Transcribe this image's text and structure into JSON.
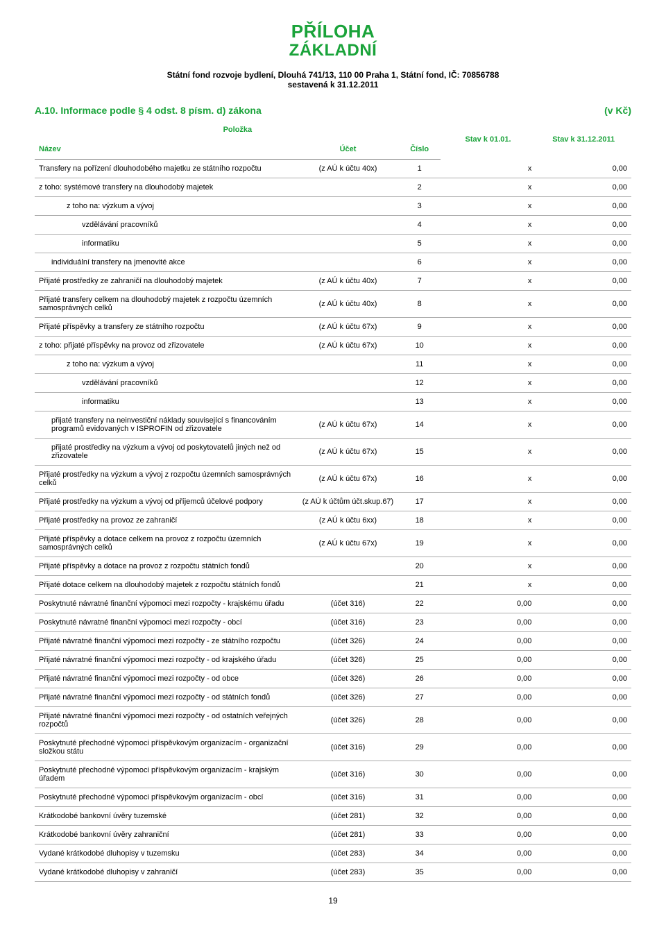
{
  "title": {
    "line1": "PŘÍLOHA",
    "line2": "ZÁKLADNÍ"
  },
  "subtitle": {
    "line1": "Státní fond rozvoje bydlení, Dlouhá 741/13, 110 00 Praha 1, Státní fond,  IČ: 70856788",
    "line2": "sestavená k 31.12.2011"
  },
  "section": {
    "left": "A.10. Informace podle § 4 odst. 8 písm. d) zákona",
    "right": "(v Kč)"
  },
  "header": {
    "polozka": "Položka",
    "nazev": "Název",
    "ucet": "Účet",
    "cislo": "Číslo",
    "col1": "Stav k 01.01.",
    "col2": "Stav k 31.12.2011"
  },
  "rows": [
    {
      "name": "Transfery na pořízení dlouhodobého majetku ze státního rozpočtu",
      "ucet": "(z AÚ k účtu 40x)",
      "cislo": "1",
      "v1": "x",
      "v2": "0,00",
      "indent": 0
    },
    {
      "name": "z toho: systémové transfery na dlouhodobý majetek",
      "ucet": "",
      "cislo": "2",
      "v1": "x",
      "v2": "0,00",
      "indent": 0
    },
    {
      "name": "z toho na: výzkum a vývoj",
      "ucet": "",
      "cislo": "3",
      "v1": "x",
      "v2": "0,00",
      "indent": 2
    },
    {
      "name": "vzdělávání pracovníků",
      "ucet": "",
      "cislo": "4",
      "v1": "x",
      "v2": "0,00",
      "indent": 3
    },
    {
      "name": "informatiku",
      "ucet": "",
      "cislo": "5",
      "v1": "x",
      "v2": "0,00",
      "indent": 3
    },
    {
      "name": "individuální transfery na jmenovité akce",
      "ucet": "",
      "cislo": "6",
      "v1": "x",
      "v2": "0,00",
      "indent": 1
    },
    {
      "name": "Přijaté prostředky ze zahraničí na dlouhodobý majetek",
      "ucet": "(z AÚ k účtu 40x)",
      "cislo": "7",
      "v1": "x",
      "v2": "0,00",
      "indent": 0
    },
    {
      "name": "Přijaté transfery celkem na dlouhodobý majetek z rozpočtu územních samosprávných celků",
      "ucet": "(z AÚ k účtu 40x)",
      "cislo": "8",
      "v1": "x",
      "v2": "0,00",
      "indent": 0
    },
    {
      "name": "Přijaté příspěvky a transfery ze státního rozpočtu",
      "ucet": "(z AÚ k účtu 67x)",
      "cislo": "9",
      "v1": "x",
      "v2": "0,00",
      "indent": 0
    },
    {
      "name": "z toho: přijaté příspěvky na provoz od zřizovatele",
      "ucet": "(z AÚ k účtu 67x)",
      "cislo": "10",
      "v1": "x",
      "v2": "0,00",
      "indent": 0
    },
    {
      "name": "z toho na: výzkum a vývoj",
      "ucet": "",
      "cislo": "11",
      "v1": "x",
      "v2": "0,00",
      "indent": 2
    },
    {
      "name": "vzdělávání pracovníků",
      "ucet": "",
      "cislo": "12",
      "v1": "x",
      "v2": "0,00",
      "indent": 3
    },
    {
      "name": "informatiku",
      "ucet": "",
      "cislo": "13",
      "v1": "x",
      "v2": "0,00",
      "indent": 3
    },
    {
      "name": "přijaté transfery na neinvestiční náklady související s financováním programů evidovaných v ISPROFIN od zřizovatele",
      "ucet": "(z AÚ k účtu 67x)",
      "cislo": "14",
      "v1": "x",
      "v2": "0,00",
      "indent": 1
    },
    {
      "name": "přijaté prostředky na výzkum a vývoj od poskytovatelů jiných než od zřizovatele",
      "ucet": "(z AÚ k účtu 67x)",
      "cislo": "15",
      "v1": "x",
      "v2": "0,00",
      "indent": 1
    },
    {
      "name": "Přijaté prostředky na výzkum a vývoj z rozpočtu územních samosprávných celků",
      "ucet": "(z AÚ k účtu 67x)",
      "cislo": "16",
      "v1": "x",
      "v2": "0,00",
      "indent": 0
    },
    {
      "name": "Přijaté prostředky na výzkum a vývoj od příjemců účelové podpory",
      "ucet": "(z AÚ k účtům účt.skup.67)",
      "cislo": "17",
      "v1": "x",
      "v2": "0,00",
      "indent": 0
    },
    {
      "name": "Přijaté prostředky na provoz ze zahraničí",
      "ucet": "(z AÚ k účtu 6xx)",
      "cislo": "18",
      "v1": "x",
      "v2": "0,00",
      "indent": 0
    },
    {
      "name": "Přijaté příspěvky a dotace celkem na provoz z rozpočtu územních samosprávných celků",
      "ucet": "(z AÚ k účtu 67x)",
      "cislo": "19",
      "v1": "x",
      "v2": "0,00",
      "indent": 0
    },
    {
      "name": "Přijaté příspěvky a dotace na provoz z rozpočtu státních fondů",
      "ucet": "",
      "cislo": "20",
      "v1": "x",
      "v2": "0,00",
      "indent": 0
    },
    {
      "name": "Přijaté dotace celkem na dlouhodobý majetek z rozpočtu státních fondů",
      "ucet": "",
      "cislo": "21",
      "v1": "x",
      "v2": "0,00",
      "indent": 0
    },
    {
      "name": "Poskytnuté návratné finanční výpomoci mezi rozpočty - krajskému úřadu",
      "ucet": "(účet 316)",
      "cislo": "22",
      "v1": "0,00",
      "v2": "0,00",
      "indent": 0
    },
    {
      "name": "Poskytnuté návratné finanční výpomoci mezi rozpočty - obcí",
      "ucet": "(účet 316)",
      "cislo": "23",
      "v1": "0,00",
      "v2": "0,00",
      "indent": 0
    },
    {
      "name": "Přijaté návratné finanční výpomoci mezi rozpočty - ze státního rozpočtu",
      "ucet": "(účet 326)",
      "cislo": "24",
      "v1": "0,00",
      "v2": "0,00",
      "indent": 0
    },
    {
      "name": "Přijaté návratné finanční výpomoci mezi rozpočty - od krajského úřadu",
      "ucet": "(účet 326)",
      "cislo": "25",
      "v1": "0,00",
      "v2": "0,00",
      "indent": 0
    },
    {
      "name": "Přijaté návratné finanční výpomoci mezi rozpočty - od obce",
      "ucet": "(účet 326)",
      "cislo": "26",
      "v1": "0,00",
      "v2": "0,00",
      "indent": 0
    },
    {
      "name": "Přijaté návratné finanční výpomoci mezi rozpočty - od státních fondů",
      "ucet": "(účet 326)",
      "cislo": "27",
      "v1": "0,00",
      "v2": "0,00",
      "indent": 0
    },
    {
      "name": "Přijaté návratné finanční výpomoci mezi rozpočty - od ostatních veřejných rozpočtů",
      "ucet": "(účet 326)",
      "cislo": "28",
      "v1": "0,00",
      "v2": "0,00",
      "indent": 0
    },
    {
      "name": "Poskytnuté přechodné výpomoci příspěvkovým organizacím - organizační složkou státu",
      "ucet": "(účet 316)",
      "cislo": "29",
      "v1": "0,00",
      "v2": "0,00",
      "indent": 0
    },
    {
      "name": "Poskytnuté přechodné výpomoci příspěvkovým organizacím - krajským úřadem",
      "ucet": "(účet 316)",
      "cislo": "30",
      "v1": "0,00",
      "v2": "0,00",
      "indent": 0
    },
    {
      "name": "Poskytnuté přechodné výpomoci příspěvkovým organizacím - obcí",
      "ucet": "(účet 316)",
      "cislo": "31",
      "v1": "0,00",
      "v2": "0,00",
      "indent": 0
    },
    {
      "name": "Krátkodobé bankovní úvěry tuzemské",
      "ucet": "(účet 281)",
      "cislo": "32",
      "v1": "0,00",
      "v2": "0,00",
      "indent": 0
    },
    {
      "name": "Krátkodobé bankovní úvěry zahraniční",
      "ucet": "(účet 281)",
      "cislo": "33",
      "v1": "0,00",
      "v2": "0,00",
      "indent": 0
    },
    {
      "name": "Vydané krátkodobé dluhopisy v tuzemsku",
      "ucet": "(účet 283)",
      "cislo": "34",
      "v1": "0,00",
      "v2": "0,00",
      "indent": 0
    },
    {
      "name": "Vydané krátkodobé dluhopisy v zahraničí",
      "ucet": "(účet 283)",
      "cislo": "35",
      "v1": "0,00",
      "v2": "0,00",
      "indent": 0
    }
  ],
  "footer": "19",
  "colors": {
    "accent": "#1aa33a",
    "border": "#aaaaaa",
    "text": "#000000",
    "background": "#ffffff"
  }
}
